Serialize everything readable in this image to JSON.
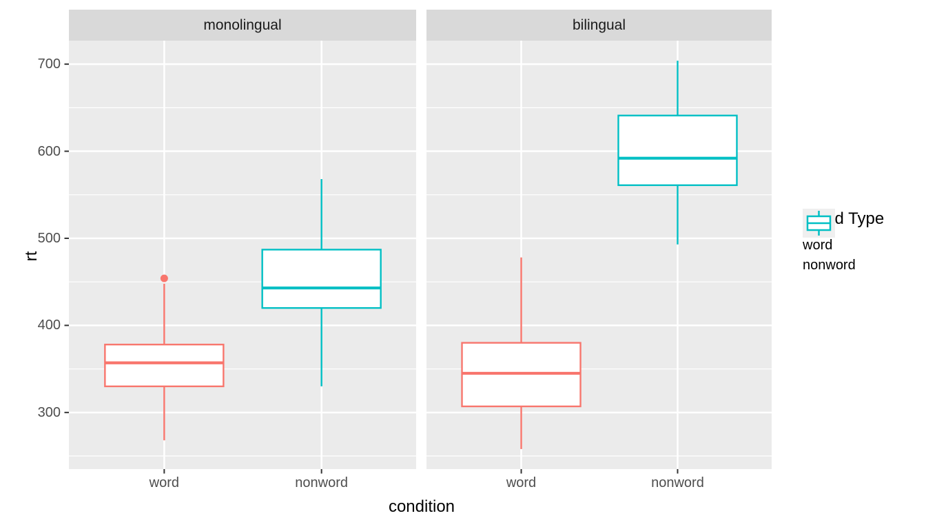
{
  "chart_data": {
    "type": "boxplot",
    "title": "",
    "xlabel": "condition",
    "ylabel": "rt",
    "categories": [
      "word",
      "nonword"
    ],
    "facet_labels": [
      "monolingual",
      "bilingual"
    ],
    "ylim": [
      235,
      727
    ],
    "yticks": [
      300,
      400,
      500,
      600,
      700
    ],
    "yticks_minor": [
      250,
      350,
      450,
      550,
      650
    ],
    "grid": "white major and minor horizontal gridlines plus vertical gridlines at category centers, on gray panel",
    "legend": {
      "title": "Word Type",
      "position": "right",
      "entries": [
        {
          "label": "word",
          "color": "#F8766D"
        },
        {
          "label": "nonword",
          "color": "#00BFC4"
        }
      ]
    },
    "facets": [
      {
        "label": "monolingual",
        "boxes": [
          {
            "category": "word",
            "series": "word",
            "color": "#F8766D",
            "whisker_low": 268,
            "q1": 330,
            "median": 357,
            "q3": 378,
            "whisker_high": 448,
            "outliers": [
              454
            ]
          },
          {
            "category": "nonword",
            "series": "nonword",
            "color": "#00BFC4",
            "whisker_low": 330,
            "q1": 420,
            "median": 443,
            "q3": 487,
            "whisker_high": 568,
            "outliers": []
          }
        ]
      },
      {
        "label": "bilingual",
        "boxes": [
          {
            "category": "word",
            "series": "word",
            "color": "#F8766D",
            "whisker_low": 258,
            "q1": 307,
            "median": 345,
            "q3": 380,
            "whisker_high": 478,
            "outliers": []
          },
          {
            "category": "nonword",
            "series": "nonword",
            "color": "#00BFC4",
            "whisker_low": 493,
            "q1": 561,
            "median": 592,
            "q3": 641,
            "whisker_high": 704,
            "outliers": []
          }
        ]
      }
    ],
    "colors": {
      "panel_bg": "#EBEBEB",
      "strip_bg": "#D9D9D9",
      "gridline": "#FFFFFF",
      "axis_text": "#4D4D4D",
      "tick_mark": "#333333",
      "legend_key_bg": "#EFEFEF",
      "box_fill": "#FFFFFF"
    }
  }
}
